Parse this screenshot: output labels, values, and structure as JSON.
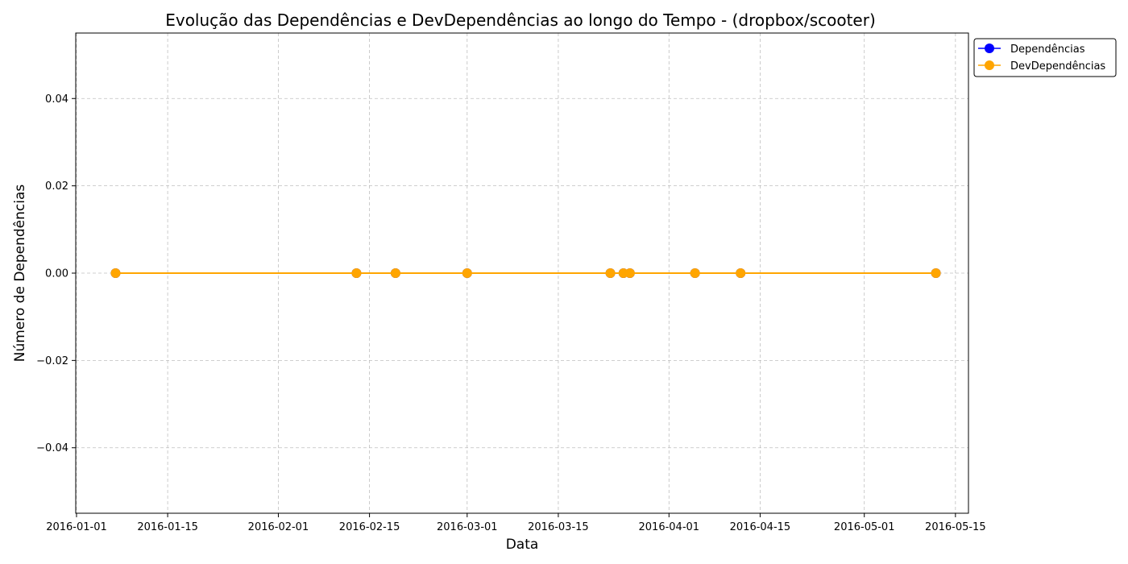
{
  "chart_data": {
    "type": "line",
    "title": "Evolução das Dependências e DevDependências ao longo do Tempo - (dropbox/scooter)",
    "xlabel": "Data",
    "ylabel": "Número de Dependências",
    "x_type": "date",
    "xlim": [
      "2016-01-01",
      "2016-05-17"
    ],
    "ylim": [
      -0.055,
      0.055
    ],
    "x_ticks": [
      "2016-01-01",
      "2016-01-15",
      "2016-02-01",
      "2016-02-15",
      "2016-03-01",
      "2016-03-15",
      "2016-04-01",
      "2016-04-15",
      "2016-05-01",
      "2016-05-15"
    ],
    "y_ticks": [
      -0.04,
      -0.02,
      0.0,
      0.02,
      0.04
    ],
    "y_tick_labels": [
      "−0.04",
      "−0.02",
      "0.00",
      "0.02",
      "0.04"
    ],
    "x": [
      "2016-01-07",
      "2016-02-13",
      "2016-02-19",
      "2016-03-01",
      "2016-03-23",
      "2016-03-25",
      "2016-03-26",
      "2016-04-05",
      "2016-04-12",
      "2016-05-12"
    ],
    "series": [
      {
        "name": "Dependências",
        "color": "#0000ff",
        "marker": "circle",
        "values": [
          0,
          0,
          0,
          0,
          0,
          0,
          0,
          0,
          0,
          0
        ]
      },
      {
        "name": "DevDependências",
        "color": "#ffa500",
        "marker": "circle",
        "values": [
          0,
          0,
          0,
          0,
          0,
          0,
          0,
          0,
          0,
          0
        ]
      }
    ],
    "grid": true,
    "legend_position": "outside-top-right"
  }
}
